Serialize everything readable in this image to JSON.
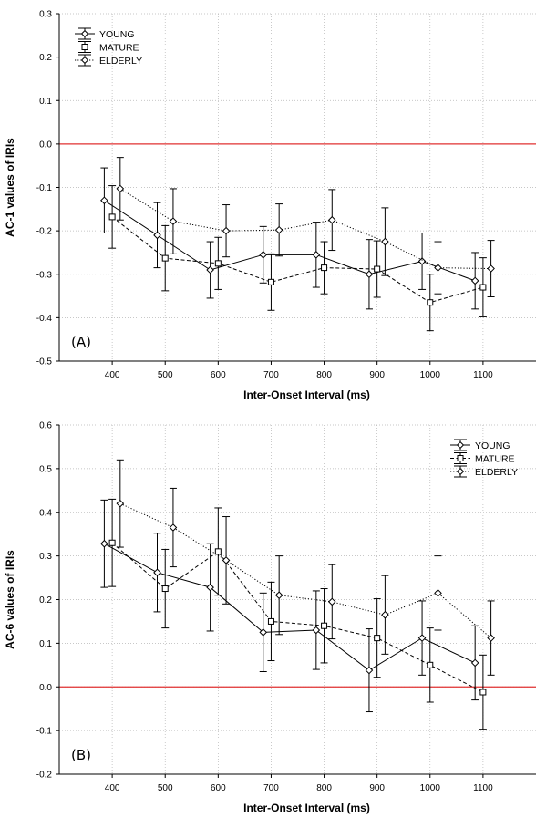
{
  "chart_data": [
    {
      "type": "line",
      "panel_label": "(A)",
      "xlabel": "Inter-Onset Interval (ms)",
      "ylabel": "AC-1 values of IRIs",
      "x_ticks": [
        "400",
        "500",
        "600",
        "700",
        "800",
        "900",
        "1000",
        "1100"
      ],
      "y_ticks": [
        "0.3",
        "0.2",
        "0.1",
        "0.0",
        "-0.1",
        "-0.2",
        "-0.3",
        "-0.4",
        "-0.5"
      ],
      "xlim": [
        300,
        1200
      ],
      "ylim": [
        -0.5,
        0.3
      ],
      "grid": true,
      "reference_line": {
        "y": 0.0,
        "color": "#e03030"
      },
      "legend_position": "top-left",
      "series": [
        {
          "name": "YOUNG",
          "marker": "diamond",
          "line": "solid",
          "x": [
            385,
            485,
            585,
            685,
            785,
            885,
            985,
            1085
          ],
          "y": [
            -0.13,
            -0.21,
            -0.29,
            -0.255,
            -0.255,
            -0.3,
            -0.27,
            -0.315
          ],
          "err": [
            0.075,
            0.075,
            0.065,
            0.065,
            0.075,
            0.08,
            0.065,
            0.065
          ]
        },
        {
          "name": "MATURE",
          "marker": "square",
          "line": "dashed",
          "x": [
            400,
            500,
            600,
            700,
            800,
            900,
            1000,
            1100
          ],
          "y": [
            -0.168,
            -0.263,
            -0.275,
            -0.318,
            -0.285,
            -0.288,
            -0.365,
            -0.33
          ],
          "err": [
            0.072,
            0.075,
            0.06,
            0.065,
            0.06,
            0.065,
            0.065,
            0.068
          ]
        },
        {
          "name": "ELDERLY",
          "marker": "diamond",
          "line": "dotted",
          "x": [
            415,
            515,
            615,
            715,
            815,
            915,
            1015,
            1115
          ],
          "y": [
            -0.103,
            -0.178,
            -0.2,
            -0.198,
            -0.175,
            -0.225,
            -0.285,
            -0.287
          ],
          "err": [
            0.072,
            0.075,
            0.06,
            0.06,
            0.07,
            0.078,
            0.06,
            0.065
          ]
        }
      ]
    },
    {
      "type": "line",
      "panel_label": "(B)",
      "xlabel": "Inter-Onset Interval (ms)",
      "ylabel": "AC-6 values of IRIs",
      "x_ticks": [
        "400",
        "500",
        "600",
        "700",
        "800",
        "900",
        "1000",
        "1100"
      ],
      "y_ticks": [
        "0.6",
        "0.5",
        "0.4",
        "0.3",
        "0.2",
        "0.1",
        "0.0",
        "-0.1",
        "-0.2"
      ],
      "xlim": [
        300,
        1200
      ],
      "ylim": [
        -0.2,
        0.6
      ],
      "grid": true,
      "reference_line": {
        "y": 0.0,
        "color": "#e03030"
      },
      "legend_position": "top-right",
      "series": [
        {
          "name": "YOUNG",
          "marker": "diamond",
          "line": "solid",
          "x": [
            385,
            485,
            585,
            685,
            785,
            885,
            985,
            1085
          ],
          "y": [
            0.328,
            0.262,
            0.228,
            0.125,
            0.13,
            0.038,
            0.112,
            0.055
          ],
          "err": [
            0.1,
            0.09,
            0.1,
            0.09,
            0.09,
            0.095,
            0.085,
            0.085
          ]
        },
        {
          "name": "MATURE",
          "marker": "square",
          "line": "dashed",
          "x": [
            400,
            500,
            600,
            700,
            800,
            900,
            1000,
            1100
          ],
          "y": [
            0.33,
            0.225,
            0.31,
            0.15,
            0.14,
            0.112,
            0.05,
            -0.012
          ],
          "err": [
            0.1,
            0.09,
            0.1,
            0.09,
            0.085,
            0.09,
            0.085,
            0.085
          ]
        },
        {
          "name": "ELDERLY",
          "marker": "diamond",
          "line": "dotted",
          "x": [
            415,
            515,
            615,
            715,
            815,
            915,
            1015,
            1115
          ],
          "y": [
            0.42,
            0.365,
            0.29,
            0.21,
            0.195,
            0.165,
            0.215,
            0.112
          ],
          "err": [
            0.1,
            0.09,
            0.1,
            0.09,
            0.085,
            0.09,
            0.085,
            0.085
          ]
        }
      ]
    }
  ]
}
